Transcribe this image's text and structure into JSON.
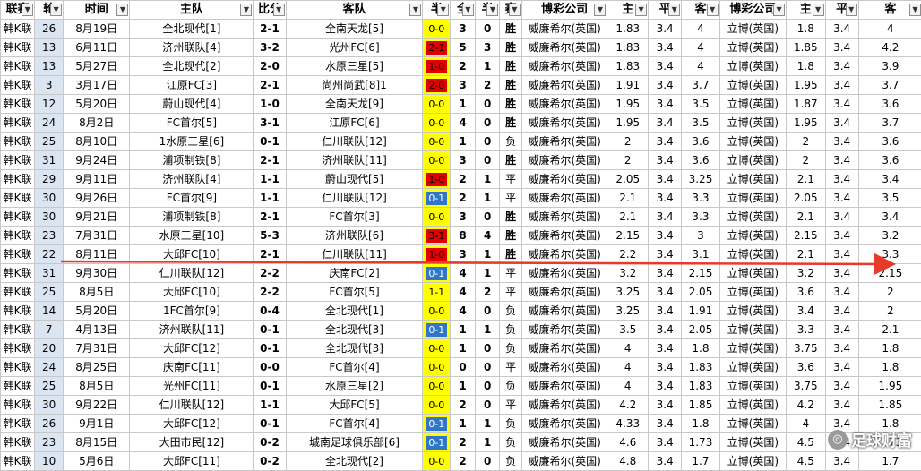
{
  "headers": [
    {
      "label": "联赛",
      "filter": true
    },
    {
      "label": "轮",
      "filter": true
    },
    {
      "label": "时间",
      "filter": true
    },
    {
      "label": "主队",
      "filter": true
    },
    {
      "label": "比分",
      "filter": true
    },
    {
      "label": "客队",
      "filter": true
    },
    {
      "label": "半",
      "filter": true
    },
    {
      "label": "全",
      "filter": true
    },
    {
      "label": "半",
      "filter": true
    },
    {
      "label": "赛",
      "filter": true
    },
    {
      "label": "博彩公司",
      "filter": true
    },
    {
      "label": "主",
      "filter": true
    },
    {
      "label": "平",
      "filter": true
    },
    {
      "label": "客",
      "filter": true
    },
    {
      "label": "博彩公司",
      "filter": true
    },
    {
      "label": "主",
      "filter": true
    },
    {
      "label": "平",
      "filter": true
    },
    {
      "label": "客",
      "filter": true
    }
  ],
  "filter_glyph": "▼",
  "colors": {
    "half_bg_yellow": "#ffff00",
    "half_bg_red": "#e00000",
    "half_bg_blue": "#2f75c8",
    "win": "#e00000",
    "draw": "#0000e0",
    "arrow": "#e8392b"
  },
  "rows": [
    {
      "league": "韩K联",
      "round": "26",
      "date": "8月19日",
      "home": "全北现代[1]",
      "score": "2-1",
      "away": "全南天龙[5]",
      "half": "0-0",
      "half_color": "yellow",
      "full_goals": "3",
      "half_goals": "0",
      "result": "胜",
      "result_type": "win",
      "co1": "威廉希尔(英国)",
      "h1": "1.83",
      "d1": "3.4",
      "a1": "4",
      "co2": "立博(英国)",
      "h2": "1.8",
      "d2": "3.4",
      "a2": "4"
    },
    {
      "league": "韩K联",
      "round": "13",
      "date": "6月11日",
      "home": "济州联队[4]",
      "score": "3-2",
      "away": "光州FC[6]",
      "half": "2-1",
      "half_color": "red",
      "full_goals": "5",
      "half_goals": "3",
      "result": "胜",
      "result_type": "win",
      "co1": "威廉希尔(英国)",
      "h1": "1.83",
      "d1": "3.4",
      "a1": "4",
      "co2": "立博(英国)",
      "h2": "1.85",
      "d2": "3.4",
      "a2": "4.2"
    },
    {
      "league": "韩K联",
      "round": "13",
      "date": "5月27日",
      "home": "全北现代[2]",
      "score": "2-0",
      "away": "水原三星[5]",
      "half": "1-0",
      "half_color": "red",
      "full_goals": "2",
      "half_goals": "1",
      "result": "胜",
      "result_type": "win",
      "co1": "威廉希尔(英国)",
      "h1": "1.83",
      "d1": "3.4",
      "a1": "4",
      "co2": "立博(英国)",
      "h2": "1.8",
      "d2": "3.4",
      "a2": "3.9"
    },
    {
      "league": "韩K联",
      "round": "3",
      "date": "3月17日",
      "home": "江原FC[3]",
      "score": "2-1",
      "away": "尚州尚武[8]1",
      "half": "2-0",
      "half_color": "red",
      "full_goals": "3",
      "half_goals": "2",
      "result": "胜",
      "result_type": "win",
      "co1": "威廉希尔(英国)",
      "h1": "1.91",
      "d1": "3.4",
      "a1": "3.7",
      "co2": "立博(英国)",
      "h2": "1.95",
      "d2": "3.4",
      "a2": "3.7"
    },
    {
      "league": "韩K联",
      "round": "12",
      "date": "5月20日",
      "home": "蔚山现代[4]",
      "score": "1-0",
      "away": "全南天龙[9]",
      "half": "0-0",
      "half_color": "yellow",
      "full_goals": "1",
      "half_goals": "0",
      "result": "胜",
      "result_type": "win",
      "co1": "威廉希尔(英国)",
      "h1": "1.95",
      "d1": "3.4",
      "a1": "3.5",
      "co2": "立博(英国)",
      "h2": "1.87",
      "d2": "3.4",
      "a2": "3.6"
    },
    {
      "league": "韩K联",
      "round": "24",
      "date": "8月2日",
      "home": "FC首尔[5]",
      "score": "3-1",
      "away": "江原FC[6]",
      "half": "0-0",
      "half_color": "yellow",
      "full_goals": "4",
      "half_goals": "0",
      "result": "胜",
      "result_type": "win",
      "co1": "威廉希尔(英国)",
      "h1": "1.95",
      "d1": "3.4",
      "a1": "3.5",
      "co2": "立博(英国)",
      "h2": "1.95",
      "d2": "3.4",
      "a2": "3.7"
    },
    {
      "league": "韩K联",
      "round": "25",
      "date": "8月10日",
      "home": "1水原三星[6]",
      "score": "0-1",
      "away": "仁川联队[12]",
      "half": "0-0",
      "half_color": "yellow",
      "full_goals": "1",
      "half_goals": "0",
      "result": "负",
      "result_type": "loss",
      "co1": "威廉希尔(英国)",
      "h1": "2",
      "d1": "3.4",
      "a1": "3.6",
      "co2": "立博(英国)",
      "h2": "2",
      "d2": "3.4",
      "a2": "3.6"
    },
    {
      "league": "韩K联",
      "round": "31",
      "date": "9月24日",
      "home": "浦项制铁[8]",
      "score": "2-1",
      "away": "济州联队[11]",
      "half": "0-0",
      "half_color": "yellow",
      "full_goals": "3",
      "half_goals": "0",
      "result": "胜",
      "result_type": "win",
      "co1": "威廉希尔(英国)",
      "h1": "2",
      "d1": "3.4",
      "a1": "3.6",
      "co2": "立博(英国)",
      "h2": "2",
      "d2": "3.4",
      "a2": "3.6"
    },
    {
      "league": "韩K联",
      "round": "29",
      "date": "9月11日",
      "home": "济州联队[4]",
      "score": "1-1",
      "away": "蔚山现代[5]",
      "half": "1-0",
      "half_color": "red",
      "full_goals": "2",
      "half_goals": "1",
      "result": "平",
      "result_type": "draw",
      "co1": "威廉希尔(英国)",
      "h1": "2.05",
      "d1": "3.4",
      "a1": "3.25",
      "co2": "立博(英国)",
      "h2": "2.1",
      "d2": "3.4",
      "a2": "3.4"
    },
    {
      "league": "韩K联",
      "round": "30",
      "date": "9月26日",
      "home": "FC首尔[9]",
      "score": "1-1",
      "away": "仁川联队[12]",
      "half": "0-1",
      "half_color": "blue",
      "full_goals": "2",
      "half_goals": "1",
      "result": "平",
      "result_type": "draw",
      "co1": "威廉希尔(英国)",
      "h1": "2.1",
      "d1": "3.4",
      "a1": "3.3",
      "co2": "立博(英国)",
      "h2": "2.05",
      "d2": "3.4",
      "a2": "3.5"
    },
    {
      "league": "韩K联",
      "round": "30",
      "date": "9月21日",
      "home": "浦项制铁[8]",
      "score": "2-1",
      "away": "FC首尔[3]",
      "half": "0-0",
      "half_color": "yellow",
      "full_goals": "3",
      "half_goals": "0",
      "result": "胜",
      "result_type": "win",
      "co1": "威廉希尔(英国)",
      "h1": "2.1",
      "d1": "3.4",
      "a1": "3.3",
      "co2": "立博(英国)",
      "h2": "2.1",
      "d2": "3.4",
      "a2": "3.4"
    },
    {
      "league": "韩K联",
      "round": "23",
      "date": "7月31日",
      "home": "水原三星[10]",
      "score": "5-3",
      "away": "济州联队[6]",
      "half": "3-1",
      "half_color": "red",
      "full_goals": "8",
      "half_goals": "4",
      "result": "胜",
      "result_type": "win",
      "co1": "威廉希尔(英国)",
      "h1": "2.15",
      "d1": "3.4",
      "a1": "3",
      "co2": "立博(英国)",
      "h2": "2.15",
      "d2": "3.4",
      "a2": "3.2"
    },
    {
      "league": "韩K联",
      "round": "22",
      "date": "8月11日",
      "home": "大邱FC[10]",
      "score": "2-1",
      "away": "仁川联队[11]",
      "half": "1-0",
      "half_color": "red",
      "full_goals": "3",
      "half_goals": "1",
      "result": "胜",
      "result_type": "win",
      "co1": "威廉希尔(英国)",
      "h1": "2.2",
      "d1": "3.4",
      "a1": "3.1",
      "co2": "立博(英国)",
      "h2": "2.1",
      "d2": "3.4",
      "a2": "3.3"
    },
    {
      "league": "韩K联",
      "round": "31",
      "date": "9月30日",
      "home": "仁川联队[12]",
      "score": "2-2",
      "away": "庆南FC[2]",
      "half": "0-1",
      "half_color": "blue",
      "full_goals": "4",
      "half_goals": "1",
      "result": "平",
      "result_type": "draw",
      "co1": "威廉希尔(英国)",
      "h1": "3.2",
      "d1": "3.4",
      "a1": "2.15",
      "co2": "立博(英国)",
      "h2": "3.2",
      "d2": "3.4",
      "a2": "2.15"
    },
    {
      "league": "韩K联",
      "round": "25",
      "date": "8月5日",
      "home": "大邱FC[10]",
      "score": "2-2",
      "away": "FC首尔[5]",
      "half": "1-1",
      "half_color": "yellow",
      "full_goals": "4",
      "half_goals": "2",
      "result": "平",
      "result_type": "draw",
      "co1": "威廉希尔(英国)",
      "h1": "3.25",
      "d1": "3.4",
      "a1": "2.05",
      "co2": "立博(英国)",
      "h2": "3.6",
      "d2": "3.4",
      "a2": "2"
    },
    {
      "league": "韩K联",
      "round": "14",
      "date": "5月20日",
      "home": "1FC首尔[9]",
      "score": "0-4",
      "away": "全北现代[1]",
      "half": "0-0",
      "half_color": "yellow",
      "full_goals": "4",
      "half_goals": "0",
      "result": "负",
      "result_type": "loss",
      "co1": "威廉希尔(英国)",
      "h1": "3.25",
      "d1": "3.4",
      "a1": "1.91",
      "co2": "立博(英国)",
      "h2": "3.4",
      "d2": "3.4",
      "a2": "2"
    },
    {
      "league": "韩K联",
      "round": "7",
      "date": "4月13日",
      "home": "济州联队[11]",
      "score": "0-1",
      "away": "全北现代[3]",
      "half": "0-1",
      "half_color": "blue",
      "full_goals": "1",
      "half_goals": "1",
      "result": "负",
      "result_type": "loss",
      "co1": "威廉希尔(英国)",
      "h1": "3.5",
      "d1": "3.4",
      "a1": "2.05",
      "co2": "立博(英国)",
      "h2": "3.3",
      "d2": "3.4",
      "a2": "2.1"
    },
    {
      "league": "韩K联",
      "round": "20",
      "date": "7月31日",
      "home": "大邱FC[12]",
      "score": "0-1",
      "away": "全北现代[3]",
      "half": "0-0",
      "half_color": "yellow",
      "full_goals": "1",
      "half_goals": "0",
      "result": "负",
      "result_type": "loss",
      "co1": "威廉希尔(英国)",
      "h1": "4",
      "d1": "3.4",
      "a1": "1.8",
      "co2": "立博(英国)",
      "h2": "3.75",
      "d2": "3.4",
      "a2": "1.8"
    },
    {
      "league": "韩K联",
      "round": "24",
      "date": "8月25日",
      "home": "庆南FC[11]",
      "score": "0-0",
      "away": "FC首尔[4]",
      "half": "0-0",
      "half_color": "yellow",
      "full_goals": "0",
      "half_goals": "0",
      "result": "平",
      "result_type": "draw",
      "co1": "威廉希尔(英国)",
      "h1": "4",
      "d1": "3.4",
      "a1": "1.83",
      "co2": "立博(英国)",
      "h2": "3.6",
      "d2": "3.4",
      "a2": "1.8"
    },
    {
      "league": "韩K联",
      "round": "25",
      "date": "8月5日",
      "home": "光州FC[11]",
      "score": "0-1",
      "away": "水原三星[2]",
      "half": "0-0",
      "half_color": "yellow",
      "full_goals": "1",
      "half_goals": "0",
      "result": "负",
      "result_type": "loss",
      "co1": "威廉希尔(英国)",
      "h1": "4",
      "d1": "3.4",
      "a1": "1.83",
      "co2": "立博(英国)",
      "h2": "3.75",
      "d2": "3.4",
      "a2": "1.95"
    },
    {
      "league": "韩K联",
      "round": "30",
      "date": "9月22日",
      "home": "仁川联队[12]",
      "score": "1-1",
      "away": "大邱FC[5]",
      "half": "0-0",
      "half_color": "yellow",
      "full_goals": "2",
      "half_goals": "0",
      "result": "平",
      "result_type": "draw",
      "co1": "威廉希尔(英国)",
      "h1": "4.2",
      "d1": "3.4",
      "a1": "1.85",
      "co2": "立博(英国)",
      "h2": "4.2",
      "d2": "3.4",
      "a2": "1.85"
    },
    {
      "league": "韩K联",
      "round": "26",
      "date": "9月1日",
      "home": "大邱FC[12]",
      "score": "0-1",
      "away": "FC首尔[4]",
      "half": "0-1",
      "half_color": "blue",
      "full_goals": "1",
      "half_goals": "1",
      "result": "负",
      "result_type": "loss",
      "co1": "威廉希尔(英国)",
      "h1": "4.33",
      "d1": "3.4",
      "a1": "1.8",
      "co2": "立博(英国)",
      "h2": "4",
      "d2": "3.4",
      "a2": "1.8"
    },
    {
      "league": "韩K联",
      "round": "23",
      "date": "8月15日",
      "home": "大田市民[12]",
      "score": "0-2",
      "away": "城南足球俱乐部[6]",
      "half": "0-1",
      "half_color": "blue",
      "full_goals": "2",
      "half_goals": "1",
      "result": "负",
      "result_type": "loss",
      "co1": "威廉希尔(英国)",
      "h1": "4.6",
      "d1": "3.4",
      "a1": "1.73",
      "co2": "立博(英国)",
      "h2": "4.5",
      "d2": "3.4",
      "a2": "1.73"
    },
    {
      "league": "韩K联",
      "round": "10",
      "date": "5月6日",
      "home": "大邱FC[11]",
      "score": "0-2",
      "away": "全北现代[2]",
      "half": "0-0",
      "half_color": "yellow",
      "full_goals": "2",
      "half_goals": "0",
      "result": "负",
      "result_type": "loss",
      "co1": "威廉希尔(英国)",
      "h1": "4.8",
      "d1": "3.4",
      "a1": "1.7",
      "co2": "立博(英国)",
      "h2": "4.5",
      "d2": "3.4",
      "a2": "1.7"
    }
  ],
  "watermark": {
    "icon": "chat-bubble-icon",
    "icon_glyph": "◎",
    "text": "足球财富"
  }
}
